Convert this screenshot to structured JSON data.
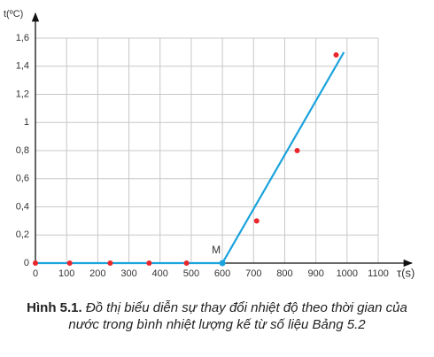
{
  "chart_data": {
    "type": "scatter",
    "y_label": "t(ºC)",
    "x_label": "τ(s)",
    "xlim": [
      0,
      1100
    ],
    "ylim": [
      0,
      1.6
    ],
    "xticks": [
      0,
      100,
      200,
      300,
      400,
      500,
      600,
      700,
      800,
      900,
      1000,
      1100
    ],
    "yticks": [
      0,
      {
        "value": 0.2,
        "label": "0,2"
      },
      {
        "value": 0.4,
        "label": "0,4"
      },
      {
        "value": 0.6,
        "label": "0,6"
      },
      {
        "value": 0.8,
        "label": "0,8"
      },
      1,
      {
        "value": 1.2,
        "label": "1,2"
      },
      {
        "value": 1.4,
        "label": "1,4"
      },
      {
        "value": 1.6,
        "label": "1,6"
      }
    ],
    "grid": true,
    "points": {
      "color": "#e8262b",
      "x": [
        0,
        110,
        240,
        365,
        485,
        710,
        840,
        965
      ],
      "y": [
        0,
        0,
        0,
        0,
        0,
        0.3,
        0.8,
        1.48
      ]
    },
    "line": {
      "color": "#1aa3dc",
      "x": [
        0,
        600,
        990
      ],
      "y": [
        0,
        0,
        1.5
      ]
    },
    "annotation": "M",
    "caption": {
      "label": "Hình 5.1.",
      "text": "Đồ thị biểu diễn sự thay đổi nhiệt độ theo thời gian của nước trong bình nhiệt lượng kế từ số liệu Bảng 5.2"
    }
  }
}
